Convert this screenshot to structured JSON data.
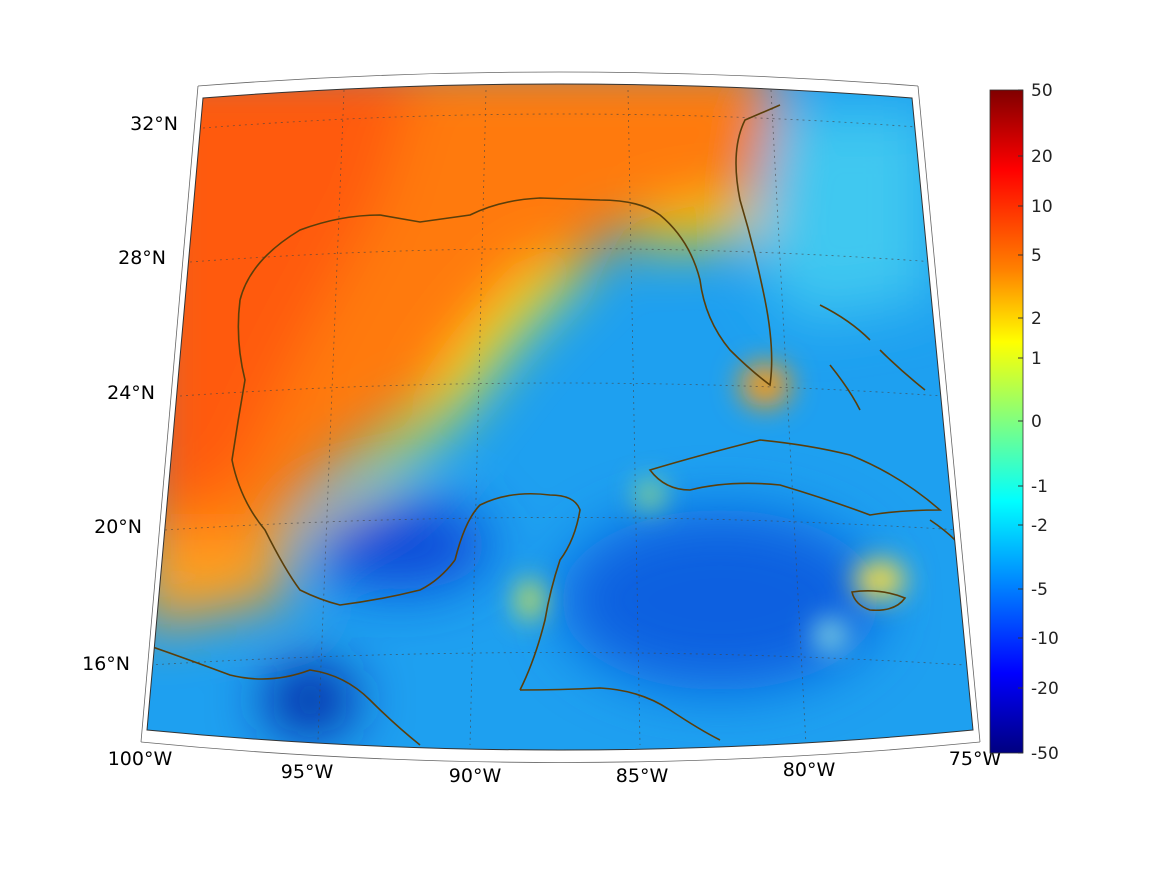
{
  "map": {
    "projection": "conic",
    "region": "Gulf of Mexico and Caribbean",
    "longitude_labels": [
      "100°W",
      "95°W",
      "90°W",
      "85°W",
      "80°W",
      "75°W"
    ],
    "latitude_labels": [
      "16°N",
      "20°N",
      "24°N",
      "28°N",
      "32°N"
    ],
    "extent": {
      "lon_min": -100,
      "lon_max": -75,
      "lat_min": 14,
      "lat_max": 33
    },
    "coastline_color": "#5a3e0a",
    "grid": "dotted"
  },
  "colorbar": {
    "ticks": [
      "50",
      "20",
      "10",
      "5",
      "2",
      "1",
      "0",
      "-1",
      "-2",
      "-5",
      "-10",
      "-20",
      "-50"
    ],
    "colormap": [
      "#800000",
      "#ff0000",
      "#ff8000",
      "#ffff00",
      "#80ff80",
      "#00ffff",
      "#0080ff",
      "#0000ff",
      "#000080"
    ],
    "scale": "symmetric-log"
  }
}
